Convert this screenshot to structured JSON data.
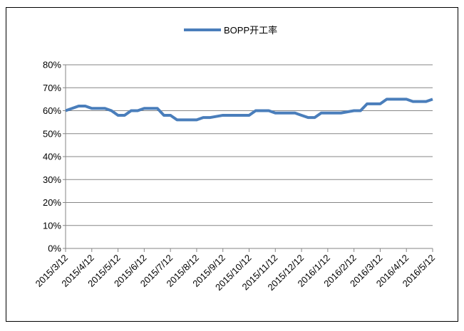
{
  "chart_data": {
    "type": "line",
    "categories": [
      "2015/3/12",
      null,
      null,
      null,
      "2015/4/12",
      null,
      null,
      null,
      "2015/5/12",
      null,
      null,
      null,
      "2015/6/12",
      null,
      null,
      null,
      "2015/7/12",
      null,
      null,
      null,
      "2015/8/12",
      null,
      null,
      null,
      "2015/9/12",
      null,
      null,
      null,
      "2015/10/12",
      null,
      null,
      null,
      "2015/11/12",
      null,
      null,
      null,
      "2015/12/12",
      null,
      null,
      null,
      "2016/1/12",
      null,
      null,
      null,
      "2016/2/12",
      null,
      null,
      null,
      "2016/3/12",
      null,
      null,
      null,
      "2016/4/12",
      null,
      null,
      null,
      "2016/5/12"
    ],
    "series": [
      {
        "name": "BOPP开工率",
        "color": "#4a7ebb",
        "values": [
          60,
          61,
          62,
          62,
          61,
          61,
          61,
          60,
          58,
          58,
          60,
          60,
          61,
          61,
          61,
          58,
          58,
          56,
          56,
          56,
          56,
          57,
          57,
          57.5,
          58,
          58,
          58,
          58,
          58,
          60,
          60,
          60,
          59,
          59,
          59,
          59,
          58,
          57,
          57,
          59,
          59,
          59,
          59,
          59.5,
          60,
          60,
          63,
          63,
          63,
          65,
          65,
          65,
          65,
          64,
          64,
          64,
          65
        ]
      }
    ],
    "ylim": [
      0,
      80
    ],
    "yticks": [
      {
        "value": 0,
        "label": "0%"
      },
      {
        "value": 10,
        "label": "10%"
      },
      {
        "value": 20,
        "label": "20%"
      },
      {
        "value": 30,
        "label": "30%"
      },
      {
        "value": 40,
        "label": "40%"
      },
      {
        "value": 50,
        "label": "50%"
      },
      {
        "value": 60,
        "label": "60%"
      },
      {
        "value": 70,
        "label": "70%"
      },
      {
        "value": 80,
        "label": "80%"
      }
    ],
    "grid": true,
    "legend": "top"
  }
}
